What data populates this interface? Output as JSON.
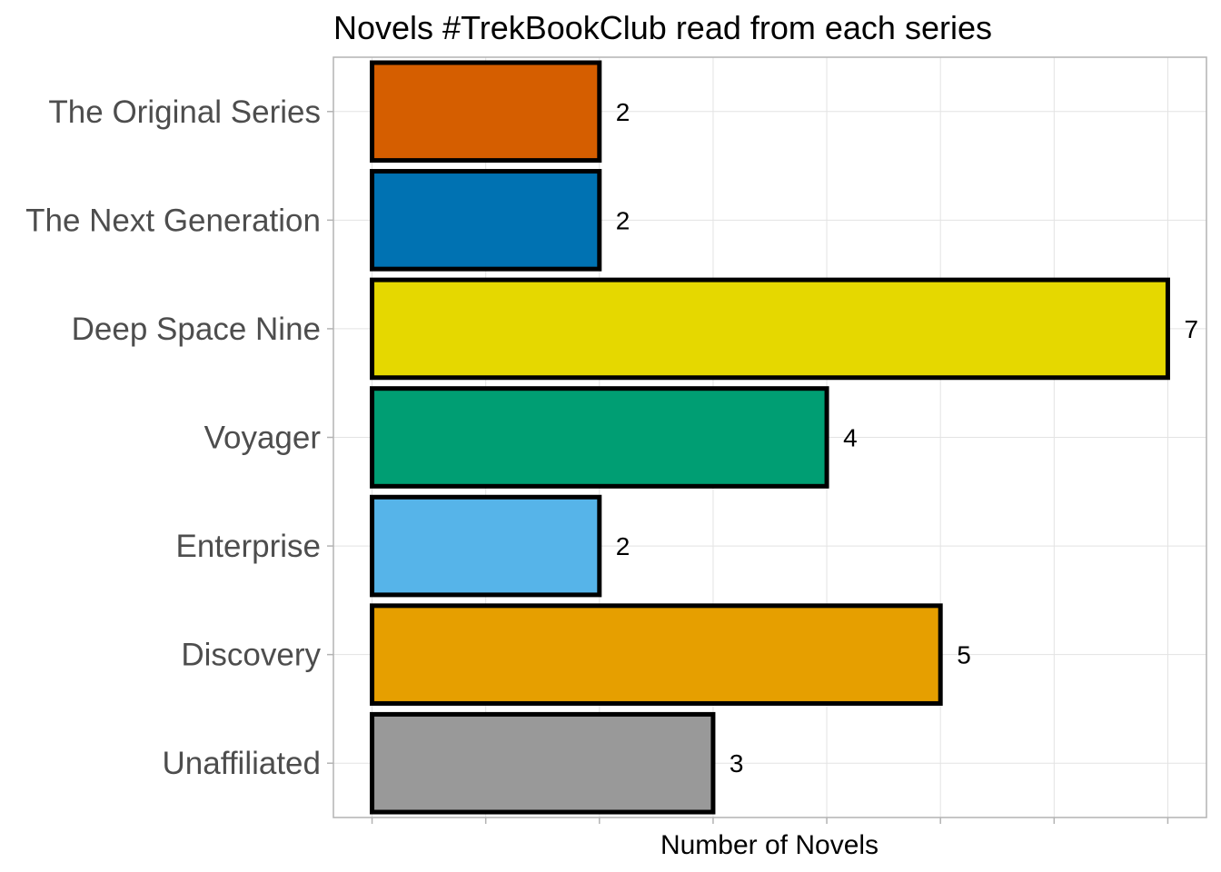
{
  "chart_data": {
    "type": "bar",
    "orientation": "horizontal",
    "title": "Novels #TrekBookClub read from each series",
    "xlabel": "Number of Novels",
    "ylabel": "",
    "categories": [
      "The Original Series",
      "The Next Generation",
      "Deep Space Nine",
      "Voyager",
      "Enterprise",
      "Discovery",
      "Unaffiliated"
    ],
    "values": [
      2,
      2,
      7,
      4,
      2,
      5,
      3
    ],
    "colors": [
      "#D55E00",
      "#0072B2",
      "#E5D800",
      "#009E73",
      "#56B4E9",
      "#E69F00",
      "#999999"
    ],
    "data_labels": [
      "2",
      "2",
      "7",
      "4",
      "2",
      "5",
      "3"
    ],
    "xlim": [
      -0.34,
      7.34
    ],
    "grid": true,
    "legend": "none",
    "x_tick_labels_shown": false
  }
}
